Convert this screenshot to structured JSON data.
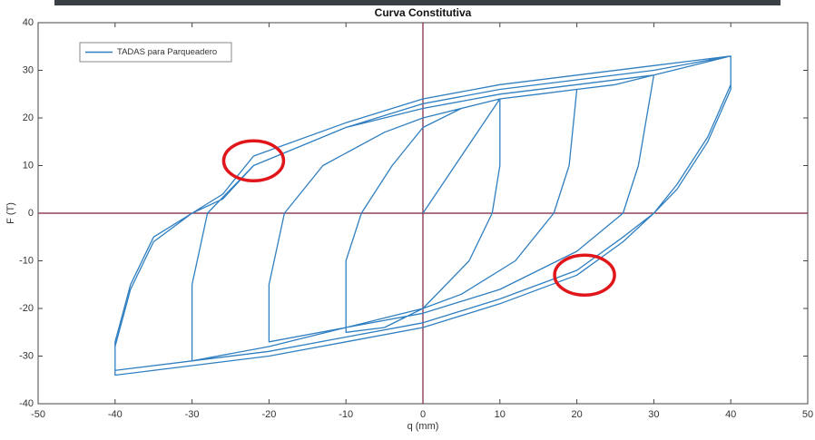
{
  "chart_data": {
    "type": "line",
    "title": "Curva Constitutiva",
    "x_label": "q (mm)",
    "y_label": "F (T)",
    "x": [
      0,
      5,
      10,
      10,
      9,
      6,
      0,
      -5,
      -10,
      -10,
      -8,
      -4,
      0,
      5,
      10,
      15,
      20,
      19,
      17,
      12,
      5,
      0,
      -10,
      -20,
      -20,
      -18,
      -13,
      -5,
      0,
      10,
      20,
      25,
      30,
      28,
      26,
      20,
      10,
      0,
      -10,
      -20,
      -30,
      -30,
      -28,
      -22,
      -10,
      0,
      10,
      20,
      30,
      35,
      40,
      40,
      37,
      33,
      30,
      26,
      20,
      10,
      0,
      -10,
      -20,
      -30,
      -40,
      -40,
      -38,
      -35,
      -30,
      -26,
      -22,
      -10,
      0,
      10,
      20,
      30,
      40,
      40,
      37,
      33,
      30,
      26,
      20,
      10,
      0,
      -10,
      -20,
      -30,
      -40,
      -40,
      -38,
      -35,
      -30,
      -26,
      -22,
      -10,
      0,
      10,
      20,
      30,
      40
    ],
    "series": [
      {
        "name": "TADAS para Parqueadero",
        "color": "#2f7fc1",
        "values": [
          0,
          12,
          24,
          10,
          0,
          -10,
          -20,
          -24,
          -25,
          -10,
          0,
          10,
          18,
          22,
          24,
          25,
          26,
          10,
          0,
          -10,
          -17,
          -20,
          -24,
          -27,
          -15,
          0,
          10,
          17,
          20,
          24,
          26,
          27,
          29,
          10,
          0,
          -8,
          -16,
          -21,
          -24,
          -28,
          -31,
          -15,
          0,
          10,
          18,
          22,
          25,
          27,
          29,
          31,
          33,
          26,
          15,
          5,
          0,
          -5,
          -12,
          -18,
          -23,
          -26,
          -29,
          -31,
          -33,
          -27,
          -15,
          -5,
          0,
          3,
          10,
          18,
          23,
          26,
          28,
          30,
          33,
          27,
          16,
          6,
          0,
          -6,
          -13,
          -19,
          -24,
          -27,
          -30,
          -32,
          -34,
          -28,
          -16,
          -6,
          0,
          4,
          12,
          19,
          24,
          27,
          29,
          31,
          33
        ]
      }
    ],
    "xlim": [
      -50,
      50
    ],
    "ylim": [
      -40,
      40
    ],
    "xticks": [
      -50,
      -40,
      -30,
      -20,
      -10,
      0,
      10,
      20,
      30,
      40,
      50
    ],
    "yticks": [
      -40,
      -30,
      -20,
      -10,
      0,
      10,
      20,
      30,
      40
    ],
    "grid": false,
    "legend": "upper left",
    "reference_lines": {
      "x": 0,
      "y": 0,
      "color": "#7b1f3a"
    },
    "highlights": {
      "color": "#e0161b",
      "points": [
        {
          "x": -22,
          "y": 11
        },
        {
          "x": 21,
          "y": -13
        }
      ]
    }
  }
}
